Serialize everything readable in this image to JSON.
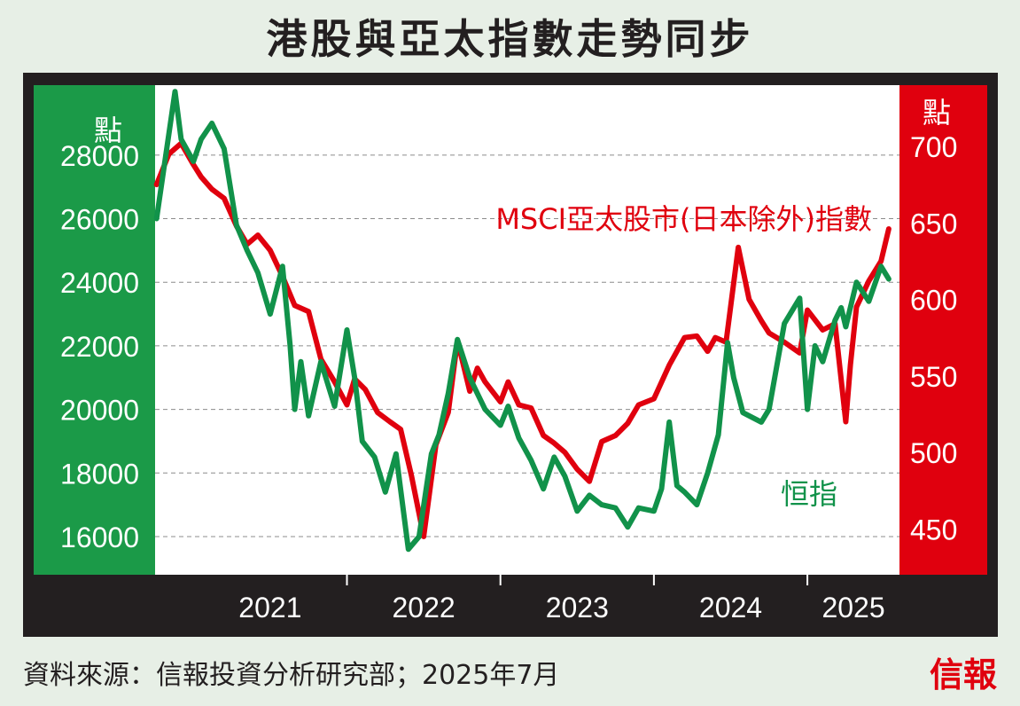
{
  "title": "港股與亞太指數走勢同步",
  "source": "資料來源：信報投資分析研究部；2025年7月",
  "brand": "信報",
  "colors": {
    "green_panel": "#1b9a48",
    "red_panel": "#e0000e",
    "hsi_line": "#11924a",
    "msci_line": "#e0000e",
    "frame": "#231f20",
    "grid": "#8c8c8c"
  },
  "chart_data": {
    "type": "line",
    "left_axis": {
      "label": "點",
      "ticks": [
        16000,
        18000,
        20000,
        22000,
        24000,
        26000,
        28000
      ],
      "range": [
        14800,
        30200
      ]
    },
    "right_axis": {
      "label": "點",
      "ticks": [
        450,
        500,
        550,
        600,
        650,
        700
      ],
      "range": [
        420,
        740
      ]
    },
    "x_axis": {
      "ticks": [
        "2021",
        "2022",
        "2023",
        "2024",
        "2025"
      ],
      "range": [
        2020.75,
        2025.6
      ]
    },
    "grid": true,
    "series": [
      {
        "name": "MSCI亞太股市(日本除外)指數",
        "axis": "right",
        "color": "#e0000e",
        "x": [
          2020.76,
          2020.84,
          2020.92,
          2021.0,
          2021.05,
          2021.12,
          2021.2,
          2021.28,
          2021.35,
          2021.42,
          2021.5,
          2021.58,
          2021.66,
          2021.75,
          2021.83,
          2021.92,
          2022.0,
          2022.05,
          2022.12,
          2022.2,
          2022.28,
          2022.35,
          2022.42,
          2022.5,
          2022.58,
          2022.66,
          2022.72,
          2022.8,
          2022.85,
          2022.9,
          2023.0,
          2023.05,
          2023.12,
          2023.2,
          2023.28,
          2023.35,
          2023.42,
          2023.5,
          2023.58,
          2023.66,
          2023.75,
          2023.83,
          2023.9,
          2024.0,
          2024.1,
          2024.2,
          2024.28,
          2024.35,
          2024.4,
          2024.47,
          2024.55,
          2024.62,
          2024.7,
          2024.75,
          2024.85,
          2024.95,
          2025.0,
          2025.1,
          2025.18,
          2025.25,
          2025.28,
          2025.32,
          2025.4,
          2025.48,
          2025.53
        ],
        "values": [
          675,
          695,
          702,
          688,
          680,
          672,
          666,
          648,
          636,
          642,
          632,
          615,
          596,
          592,
          561,
          546,
          531,
          548,
          541,
          526,
          520,
          515,
          485,
          445,
          505,
          526,
          573,
          540,
          555,
          546,
          533,
          546,
          531,
          529,
          511,
          506,
          500,
          489,
          481,
          507,
          511,
          519,
          531,
          535,
          557,
          575,
          576,
          566,
          575,
          572,
          634,
          600,
          586,
          578,
          572,
          565,
          593,
          580,
          584,
          520,
          557,
          595,
          612,
          625,
          646
        ]
      },
      {
        "name": "恒指",
        "axis": "left",
        "color": "#11924a",
        "x": [
          2020.76,
          2020.82,
          2020.88,
          2020.92,
          2021.0,
          2021.05,
          2021.12,
          2021.2,
          2021.28,
          2021.35,
          2021.42,
          2021.5,
          2021.58,
          2021.63,
          2021.66,
          2021.7,
          2021.75,
          2021.83,
          2021.92,
          2022.0,
          2022.05,
          2022.1,
          2022.18,
          2022.25,
          2022.32,
          2022.4,
          2022.47,
          2022.55,
          2022.6,
          2022.66,
          2022.72,
          2022.8,
          2022.85,
          2022.9,
          2023.0,
          2023.05,
          2023.12,
          2023.2,
          2023.28,
          2023.35,
          2023.42,
          2023.5,
          2023.58,
          2023.66,
          2023.75,
          2023.83,
          2023.9,
          2024.0,
          2024.05,
          2024.1,
          2024.15,
          2024.2,
          2024.28,
          2024.35,
          2024.42,
          2024.48,
          2024.52,
          2024.58,
          2024.62,
          2024.7,
          2024.75,
          2024.85,
          2024.95,
          2025.0,
          2025.05,
          2025.1,
          2025.18,
          2025.22,
          2025.25,
          2025.32,
          2025.4,
          2025.48,
          2025.53
        ],
        "values": [
          26000,
          28000,
          30000,
          28500,
          27800,
          28500,
          29000,
          28200,
          25800,
          25000,
          24300,
          23000,
          24500,
          22000,
          20000,
          21500,
          19800,
          21500,
          20100,
          22500,
          21000,
          19000,
          18500,
          17400,
          18600,
          15600,
          16000,
          18600,
          19200,
          20500,
          22200,
          21000,
          20500,
          20000,
          19500,
          20100,
          19100,
          18400,
          17500,
          18500,
          17900,
          16800,
          17300,
          17000,
          16900,
          16300,
          16900,
          16800,
          17500,
          19600,
          17600,
          17400,
          17000,
          18000,
          19200,
          22100,
          21000,
          19900,
          19800,
          19600,
          20000,
          22700,
          23500,
          20000,
          22000,
          21500,
          22800,
          23200,
          22600,
          24000,
          23400,
          24500,
          24100
        ]
      }
    ],
    "annotations": [
      "MSCI亞太股市(日本除外)指數",
      "恒指"
    ]
  }
}
